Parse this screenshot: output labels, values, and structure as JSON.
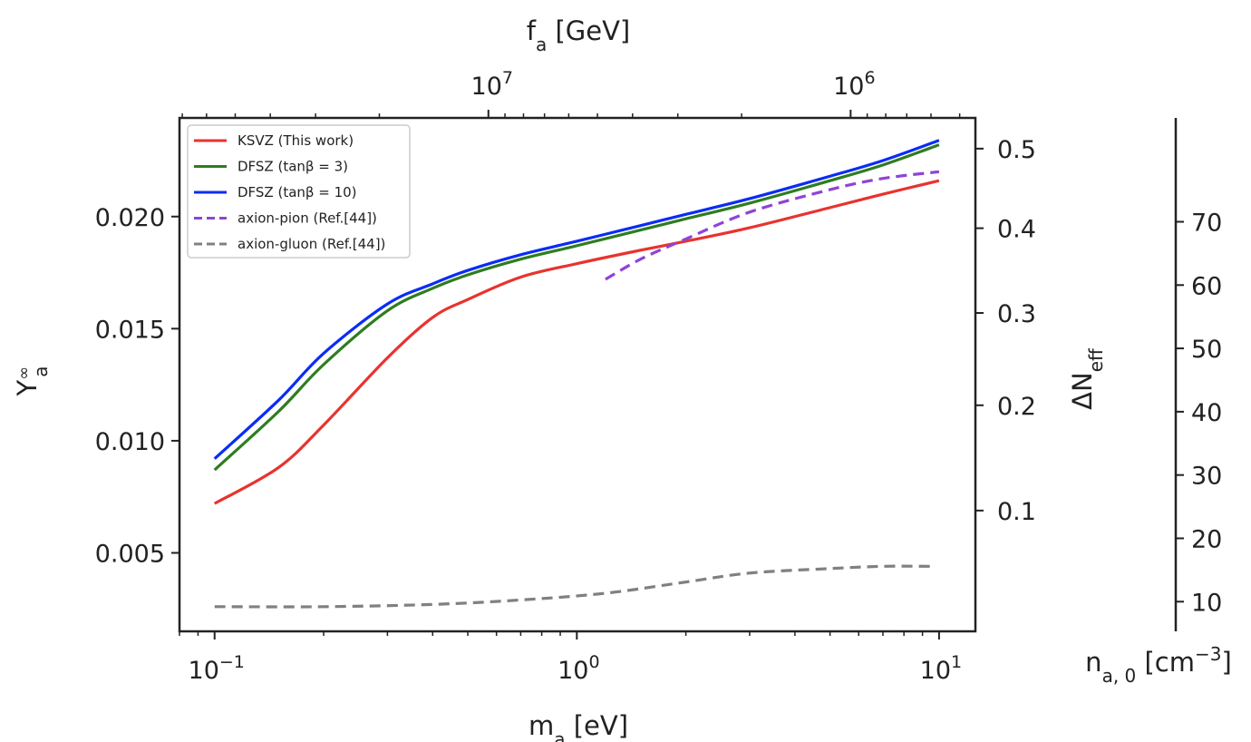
{
  "chart_data": {
    "type": "line",
    "xscale": "log",
    "xlabel": "m_a [eV]",
    "ylabel": "Y_a^∞",
    "top_xlabel": "f_a [GeV]",
    "right_ylabel": "ΔN_eff",
    "far_right_ylabel": "n_a,0 [cm^-3]",
    "xlim": [
      0.08,
      12.6
    ],
    "ylim": [
      0.0015,
      0.0244
    ],
    "x_ticks": [
      {
        "value": 0.1,
        "base": "10",
        "exp": "−1"
      },
      {
        "value": 1,
        "base": "10",
        "exp": "0"
      },
      {
        "value": 10,
        "base": "10",
        "exp": "1"
      }
    ],
    "y_ticks": [
      "0.005",
      "0.010",
      "0.015",
      "0.020"
    ],
    "top_ticks": [
      {
        "value": 10000000,
        "base": "10",
        "exp": "7"
      },
      {
        "value": 1000000,
        "base": "10",
        "exp": "6"
      }
    ],
    "right_ticks": [
      "0.1",
      "0.2",
      "0.3",
      "0.4",
      "0.5"
    ],
    "far_right_ticks": [
      "10",
      "20",
      "30",
      "40",
      "50",
      "60",
      "70"
    ],
    "series": [
      {
        "name": "KSVZ (This work)",
        "color": "#e8332e",
        "dash": "solid",
        "x": [
          0.1,
          0.15,
          0.2,
          0.3,
          0.4,
          0.5,
          0.7,
          1.0,
          1.5,
          2.0,
          3.0,
          5.0,
          7.0,
          10.0
        ],
        "y": [
          0.0072,
          0.0088,
          0.0107,
          0.0137,
          0.0155,
          0.0163,
          0.0173,
          0.0179,
          0.0185,
          0.0189,
          0.0195,
          0.0204,
          0.021,
          0.0216
        ]
      },
      {
        "name": "DFSZ (tanβ = 3)",
        "color": "#2e7d1f",
        "dash": "solid",
        "x": [
          0.1,
          0.15,
          0.2,
          0.3,
          0.4,
          0.5,
          0.7,
          1.0,
          1.5,
          2.0,
          3.0,
          5.0,
          7.0,
          10.0
        ],
        "y": [
          0.0087,
          0.0113,
          0.0134,
          0.0158,
          0.0168,
          0.0174,
          0.0181,
          0.0187,
          0.0194,
          0.0199,
          0.0206,
          0.0216,
          0.0223,
          0.0232
        ]
      },
      {
        "name": "DFSZ (tanβ = 10)",
        "color": "#0a2cf5",
        "dash": "solid",
        "x": [
          0.1,
          0.15,
          0.2,
          0.3,
          0.4,
          0.5,
          0.7,
          1.0,
          1.5,
          2.0,
          3.0,
          5.0,
          7.0,
          10.0
        ],
        "y": [
          0.0092,
          0.0118,
          0.0139,
          0.0161,
          0.017,
          0.0176,
          0.0183,
          0.0189,
          0.0196,
          0.0201,
          0.0208,
          0.0218,
          0.0225,
          0.0234
        ]
      },
      {
        "name": "axion-pion (Ref.[44])",
        "color": "#8e44d6",
        "dash": "dashed",
        "x": [
          1.2,
          1.5,
          2.0,
          3.0,
          5.0,
          7.0,
          10.0
        ],
        "y": [
          0.0172,
          0.0181,
          0.019,
          0.0202,
          0.0212,
          0.0217,
          0.022
        ]
      },
      {
        "name": "axion-gluon (Ref.[44])",
        "color": "#808080",
        "dash": "dashed",
        "x": [
          0.1,
          0.2,
          0.4,
          0.7,
          1.2,
          2.0,
          3.0,
          5.0,
          7.0,
          9.5
        ],
        "y": [
          0.0026,
          0.0026,
          0.0027,
          0.0029,
          0.0032,
          0.0037,
          0.0041,
          0.0043,
          0.0044,
          0.0044
        ]
      }
    ]
  }
}
